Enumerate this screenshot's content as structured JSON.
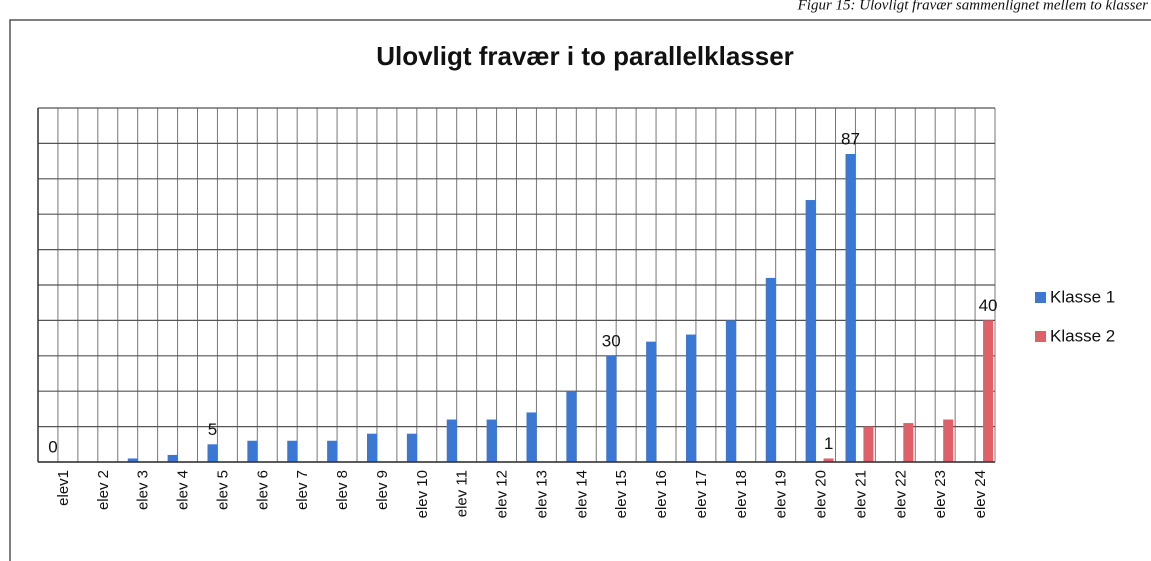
{
  "caption": "Figur 15: Ulovligt fravær sammenlignet mellem to klasser",
  "chart_data": {
    "type": "bar",
    "title": "Ulovligt fravær i to parallelklasser",
    "categories": [
      "elev1",
      "elev 2",
      "elev 3",
      "elev 4",
      "elev 5",
      "elev 6",
      "elev 7",
      "elev 8",
      "elev 9",
      "elev 10",
      "elev 11",
      "elev 12",
      "elev 13",
      "elev 14",
      "elev 15",
      "elev 16",
      "elev 17",
      "elev 18",
      "elev 19",
      "elev 20",
      "elev 21",
      "elev 22",
      "elev 23",
      "elev 24"
    ],
    "series": [
      {
        "name": "Klasse 1",
        "color": "#3a78d4",
        "values": [
          0,
          0,
          1,
          2,
          5,
          6,
          6,
          6,
          8,
          8,
          12,
          12,
          14,
          20,
          30,
          34,
          36,
          40,
          52,
          74,
          87,
          0,
          0,
          0
        ],
        "value_labels": [
          "0",
          null,
          null,
          null,
          "5",
          null,
          null,
          null,
          null,
          null,
          null,
          null,
          null,
          null,
          "30",
          null,
          null,
          null,
          null,
          null,
          "87",
          null,
          null,
          null
        ]
      },
      {
        "name": "Klasse 2",
        "color": "#e0606a",
        "values": [
          0,
          0,
          0,
          0,
          0,
          0,
          0,
          0,
          0,
          0,
          0,
          0,
          0,
          0,
          0,
          0,
          0,
          0,
          0,
          1,
          10,
          11,
          12,
          40
        ],
        "value_labels": [
          null,
          null,
          null,
          null,
          null,
          null,
          null,
          null,
          null,
          null,
          null,
          null,
          null,
          null,
          null,
          null,
          null,
          null,
          null,
          "1",
          null,
          null,
          null,
          "40"
        ]
      }
    ],
    "ylim": [
      0,
      100
    ],
    "yticks": [
      0,
      10,
      20,
      30,
      40,
      50,
      60,
      70,
      80,
      90,
      100
    ],
    "grid": true,
    "legend": "right"
  }
}
